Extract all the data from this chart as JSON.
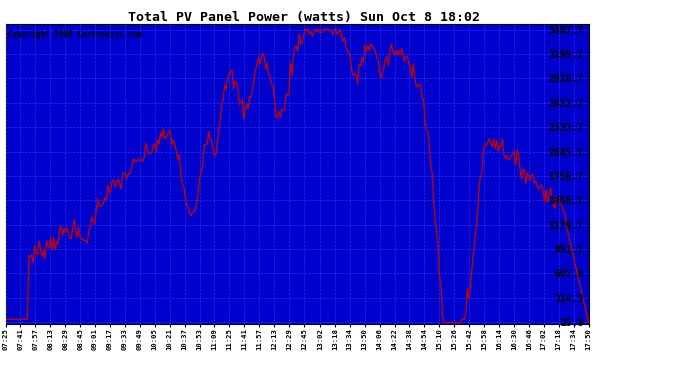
{
  "title": "Total PV Panel Power (watts) Sun Oct 8 18:02",
  "copyright": "Copyright 2006 Cartronics.com",
  "bg_color": "#0000cc",
  "line_color": "#cc0000",
  "grid_color": "#3333ff",
  "yticks": [
    25.8,
    314.3,
    602.8,
    891.2,
    1179.7,
    1468.2,
    1756.7,
    2045.2,
    2333.7,
    2622.2,
    2910.7,
    3199.2,
    3487.7
  ],
  "y_min": 0,
  "y_max": 3550,
  "x_labels": [
    "07:25",
    "07:41",
    "07:57",
    "08:13",
    "08:29",
    "08:45",
    "09:01",
    "09:17",
    "09:33",
    "09:49",
    "10:05",
    "10:21",
    "10:37",
    "10:53",
    "11:09",
    "11:25",
    "11:41",
    "11:57",
    "12:13",
    "12:29",
    "12:45",
    "13:02",
    "13:18",
    "13:34",
    "13:50",
    "14:06",
    "14:22",
    "14:38",
    "14:54",
    "15:10",
    "15:26",
    "15:42",
    "15:58",
    "16:14",
    "16:30",
    "16:46",
    "17:02",
    "17:18",
    "17:34",
    "17:50"
  ],
  "figwidth": 6.9,
  "figheight": 3.75,
  "dpi": 100
}
